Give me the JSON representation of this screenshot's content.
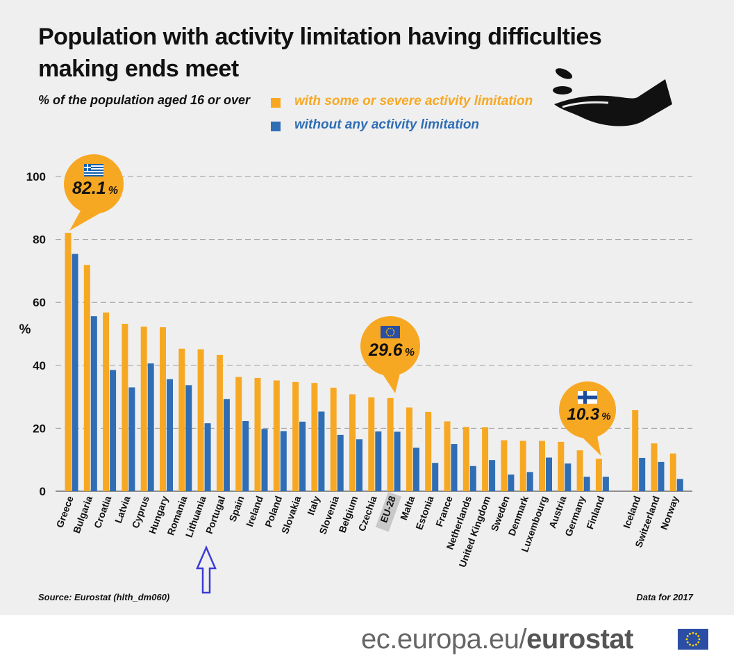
{
  "title_line1": "Population with activity limitation having difficulties",
  "title_line2": "making ends meet",
  "subtitle": "% of the population aged 16 or over",
  "legend": {
    "orange_label": "with some or severe activity limitation",
    "blue_label": "without any activity limitation"
  },
  "colors": {
    "orange": "#F7A823",
    "blue": "#2F6DB4",
    "background": "#EFEFEF",
    "eu_flag": "#2B4DA3"
  },
  "callouts": {
    "greece": "82.1",
    "eu": "29.6",
    "finland": "10.3",
    "percent_sign": "%"
  },
  "source": "Source: Eurostat (hlth_dm060)",
  "data_for": "Data for 2017",
  "footer": {
    "domain": "ec.europa.eu/",
    "brand": "eurostat"
  },
  "chart_data": {
    "type": "bar",
    "title": "Population with activity limitation having difficulties making ends meet",
    "ylabel": "%",
    "ylim": [
      0,
      100
    ],
    "yticks": [
      0,
      20,
      40,
      60,
      80,
      100
    ],
    "grid": true,
    "categories": [
      "Greece",
      "Bulgaria",
      "Croatia",
      "Latvia",
      "Cyprus",
      "Hungary",
      "Romania",
      "Lithuania",
      "Portugal",
      "Spain",
      "Ireland",
      "Poland",
      "Slovakia",
      "Italy",
      "Slovenia",
      "Belgium",
      "Czechia",
      "EU-28",
      "Malta",
      "Estonia",
      "France",
      "Netherlands",
      "United Kingdom",
      "Sweden",
      "Denmark",
      "Luxembourg",
      "Austria",
      "Germany",
      "Finland",
      "Iceland",
      "Switzerland",
      "Norway"
    ],
    "highlight_category": "EU-28",
    "series": [
      {
        "name": "with some or severe activity limitation",
        "values": [
          82.1,
          71.9,
          56.8,
          53.2,
          52.3,
          52.1,
          45.3,
          45.1,
          43.3,
          36.3,
          36.0,
          35.2,
          34.7,
          34.4,
          32.9,
          30.8,
          29.8,
          29.6,
          26.6,
          25.2,
          22.2,
          20.4,
          20.3,
          16.2,
          16.0,
          16.0,
          15.7,
          13.0,
          10.3,
          25.8,
          15.2,
          12.0
        ]
      },
      {
        "name": "without any activity limitation",
        "values": [
          75.4,
          55.6,
          38.5,
          33.0,
          40.6,
          35.6,
          33.7,
          21.6,
          29.3,
          22.3,
          19.8,
          19.1,
          22.1,
          25.3,
          17.9,
          16.5,
          19.0,
          18.9,
          13.8,
          9.0,
          15.0,
          8.0,
          9.9,
          5.3,
          6.1,
          10.7,
          8.8,
          4.6,
          4.6,
          10.6,
          9.3,
          3.9
        ]
      }
    ]
  }
}
